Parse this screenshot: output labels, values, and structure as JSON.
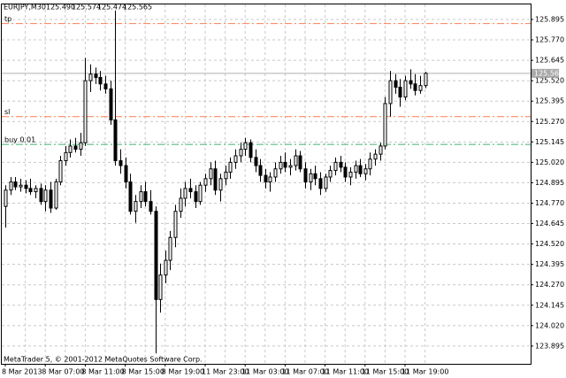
{
  "chart_data": {
    "type": "candlestick",
    "title": "EURJPY,M30",
    "last_bar": {
      "values": [
        125.49,
        125.574,
        125.474,
        125.565
      ],
      "value_labels": [
        "125.490",
        "125.574",
        "125.474",
        "125.565"
      ]
    },
    "copyright": "MetaTrader 5, © 2001-2012 MetaQuotes Software Corp.",
    "ylim": [
      123.786,
      125.987
    ],
    "yticks": [
      125.895,
      {
        "value": 125.77,
        "label": "125.770"
      },
      125.645,
      {
        "value": 125.52,
        "label": "125.520"
      },
      125.395,
      {
        "value": 125.27,
        "label": "125.270"
      },
      125.145,
      {
        "value": 125.02,
        "label": "125.020"
      },
      124.895,
      {
        "value": 124.77,
        "label": "124.770"
      },
      124.645,
      {
        "value": 124.52,
        "label": "124.520"
      },
      124.395,
      {
        "value": 124.27,
        "label": "124.270"
      },
      124.145,
      {
        "value": 124.02,
        "label": "124.020"
      },
      123.895
    ],
    "grid": true,
    "levels": [
      {
        "name": "tp",
        "value": 125.87,
        "color": "#ff7f50"
      },
      {
        "name": "sl",
        "value": 125.3,
        "color": "#ff7f50"
      },
      {
        "name": "buy 0.01",
        "value": 125.13,
        "color": "#3cb371"
      }
    ],
    "categories": [
      "8 Mar 2013",
      null,
      null,
      null,
      null,
      null,
      null,
      null,
      "8 Mar 07:00",
      null,
      null,
      null,
      null,
      null,
      null,
      null,
      "8 Mar 11:00",
      null,
      null,
      null,
      null,
      null,
      null,
      null,
      "8 Mar 15:00",
      null,
      null,
      null,
      null,
      null,
      null,
      null,
      "8 Mar 19:00",
      null,
      null,
      null,
      null,
      null,
      null,
      null,
      "11 Mar 23:00",
      null,
      null,
      null,
      null,
      null,
      null,
      null,
      "11 Mar 03:00",
      null,
      null,
      null,
      null,
      null,
      null,
      null,
      "11 Mar 07:00",
      null,
      null,
      null,
      null,
      null,
      null,
      null,
      "11 Mar 11:00",
      null,
      null,
      null,
      null,
      null,
      null,
      null,
      "11 Mar 15:00",
      null,
      null,
      null,
      null,
      null,
      null,
      null,
      "11 Mar 19:00",
      null,
      null,
      null,
      null
    ],
    "open": [
      124.75,
      124.85,
      124.9,
      124.87,
      124.88,
      124.86,
      124.84,
      124.86,
      124.78,
      124.85,
      124.74,
      124.9,
      125.03,
      125.08,
      125.12,
      125.1,
      125.14,
      125.52,
      125.56,
      125.54,
      125.5,
      125.47,
      125.28,
      125.03,
      125.0,
      124.9,
      124.72,
      124.78,
      124.84,
      124.78,
      124.72,
      124.18,
      124.33,
      124.42,
      124.56,
      124.72,
      124.8,
      124.86,
      124.84,
      124.78,
      124.88,
      124.92,
      124.98,
      124.85,
      124.92,
      124.96,
      125.02,
      125.06,
      125.1,
      125.14,
      125.05,
      125.0,
      124.94,
      124.9,
      124.93,
      124.98,
      125.02,
      124.99,
      125.0,
      125.06,
      124.98,
      124.9,
      124.95,
      124.92,
      124.86,
      124.93,
      124.97,
      125.02,
      124.99,
      124.93,
      124.96,
      125.0,
      124.95,
      124.98,
      125.04,
      125.07,
      125.12,
      125.38,
      125.52,
      125.48,
      125.42,
      125.52,
      125.5,
      125.46,
      125.49
    ],
    "high": [
      124.88,
      124.93,
      124.93,
      124.92,
      124.91,
      124.92,
      124.88,
      124.89,
      124.88,
      124.9,
      124.92,
      125.06,
      125.12,
      125.16,
      125.17,
      125.2,
      125.66,
      125.62,
      125.6,
      125.58,
      125.55,
      125.52,
      125.95,
      125.1,
      125.05,
      124.95,
      124.82,
      124.88,
      124.9,
      124.85,
      124.75,
      124.4,
      124.48,
      124.6,
      124.76,
      124.86,
      124.9,
      124.92,
      124.88,
      124.9,
      124.95,
      125.02,
      125.03,
      124.95,
      125.0,
      125.05,
      125.1,
      125.14,
      125.17,
      125.16,
      125.1,
      125.04,
      124.98,
      124.96,
      125.02,
      125.06,
      125.08,
      125.04,
      125.1,
      125.09,
      125.02,
      124.98,
      125.0,
      124.96,
      124.95,
      125.0,
      125.05,
      125.06,
      125.02,
      124.99,
      125.03,
      125.04,
      125.01,
      125.08,
      125.1,
      125.14,
      125.42,
      125.58,
      125.56,
      125.53,
      125.55,
      125.59,
      125.56,
      125.55,
      125.574
    ],
    "low": [
      124.62,
      124.82,
      124.85,
      124.84,
      124.83,
      124.82,
      124.8,
      124.76,
      124.72,
      124.71,
      124.73,
      124.88,
      125.0,
      125.05,
      125.08,
      125.06,
      125.12,
      125.45,
      125.5,
      125.46,
      125.44,
      125.25,
      125.0,
      124.95,
      124.86,
      124.7,
      124.65,
      124.74,
      124.75,
      124.7,
      123.85,
      124.1,
      124.28,
      124.36,
      124.5,
      124.68,
      124.75,
      124.8,
      124.74,
      124.76,
      124.84,
      124.88,
      124.82,
      124.78,
      124.88,
      124.92,
      124.98,
      125.02,
      125.06,
      125.02,
      124.96,
      124.9,
      124.86,
      124.84,
      124.9,
      124.95,
      124.96,
      124.94,
      124.97,
      124.96,
      124.86,
      124.85,
      124.88,
      124.82,
      124.84,
      124.9,
      124.94,
      124.96,
      124.9,
      124.88,
      124.92,
      124.93,
      124.91,
      124.94,
      125.0,
      125.03,
      125.1,
      125.3,
      125.44,
      125.36,
      125.4,
      125.47,
      125.43,
      125.44,
      125.474
    ],
    "close": [
      124.85,
      124.9,
      124.87,
      124.88,
      124.86,
      124.84,
      124.86,
      124.78,
      124.85,
      124.74,
      124.9,
      125.03,
      125.08,
      125.12,
      125.1,
      125.14,
      125.52,
      125.56,
      125.54,
      125.5,
      125.47,
      125.28,
      125.03,
      125.0,
      124.9,
      124.72,
      124.78,
      124.84,
      124.78,
      124.72,
      124.18,
      124.33,
      124.42,
      124.56,
      124.72,
      124.8,
      124.86,
      124.84,
      124.78,
      124.88,
      124.92,
      124.98,
      124.85,
      124.92,
      124.96,
      125.02,
      125.06,
      125.1,
      125.14,
      125.05,
      125.0,
      124.94,
      124.9,
      124.93,
      124.98,
      125.02,
      124.99,
      125.0,
      125.06,
      124.98,
      124.9,
      124.95,
      124.92,
      124.86,
      124.93,
      124.97,
      125.02,
      124.99,
      124.93,
      124.96,
      125.0,
      124.95,
      124.98,
      125.04,
      125.07,
      125.12,
      125.38,
      125.52,
      125.48,
      125.42,
      125.52,
      125.5,
      125.46,
      125.49,
      125.565
    ]
  }
}
